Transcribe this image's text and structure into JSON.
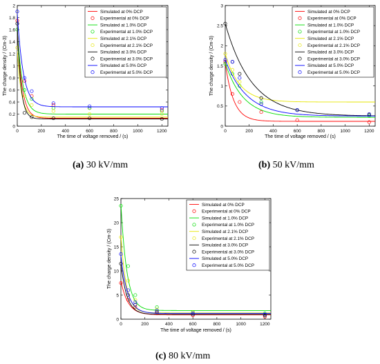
{
  "captions": [
    {
      "letter": "(a)",
      "text": "30 kV/mm"
    },
    {
      "letter": "(b)",
      "text": "50 kV/mm"
    },
    {
      "letter": "(c)",
      "text": "80 kV/mm"
    }
  ],
  "legend_entries": [
    "Simulated at 0% DCP",
    "Experimental at 0% DCP",
    "Simulated at 1.0% DCP",
    "Experimental at 1.0% DCP",
    "Simulated at 2.1% DCP",
    "Experimental at 2.1% DCP",
    "Simulated at 3.0% DCP",
    "Experimental at 3.0% DCP",
    "Simulated at 5.0% DCP",
    "Experimental at 5.0% DCP"
  ],
  "colors": {
    "0%": "#ff0000",
    "1.0%": "#00dd00",
    "2.1%": "#e6e600",
    "3.0%": "#000000",
    "5.0%": "#0000ff"
  },
  "chart_data": [
    {
      "type": "scatter",
      "xlabel": "The time of voltage removed / (s)",
      "ylabel": "The charge density / (Cm-3)",
      "xlim": [
        0,
        1250
      ],
      "ylim": [
        0,
        2
      ],
      "xticks": [
        0,
        200,
        400,
        600,
        800,
        1000,
        1200
      ],
      "yticks": [
        0,
        0.2,
        0.4,
        0.6,
        0.8,
        1,
        1.2,
        1.4,
        1.6,
        1.8,
        2
      ],
      "ytick_labels": [
        "0",
        "0.2",
        "0.4",
        "0.6",
        "0.8",
        "1",
        "1.2",
        "1.4",
        "1.6",
        "1.8",
        "2"
      ],
      "legend": "top-right",
      "series": [
        {
          "name": "0%",
          "sim": {
            "A": 1.45,
            "tau": 40,
            "c": 0.13
          },
          "exp": [
            [
              0,
              1.75
            ],
            [
              60,
              0.75
            ],
            [
              120,
              0.5
            ],
            [
              300,
              0.35
            ],
            [
              600,
              0.3
            ],
            [
              1200,
              0.27
            ]
          ]
        },
        {
          "name": "1.0%",
          "sim": {
            "A": 1.4,
            "tau": 45,
            "c": 0.2
          },
          "exp": [
            [
              0,
              1.6
            ],
            [
              60,
              0.6
            ],
            [
              120,
              0.45
            ],
            [
              300,
              0.3
            ],
            [
              600,
              0.3
            ],
            [
              1200,
              0.25
            ]
          ]
        },
        {
          "name": "2.1%",
          "sim": {
            "A": 1.1,
            "tau": 35,
            "c": 0.15
          },
          "exp": [
            [
              0,
              1.3
            ],
            [
              60,
              0.5
            ],
            [
              120,
              0.35
            ],
            [
              300,
              0.25
            ],
            [
              600,
              0.2
            ],
            [
              1200,
              0.2
            ]
          ]
        },
        {
          "name": "3.0%",
          "sim": {
            "A": 1.55,
            "tau": 30,
            "c": 0.12
          },
          "exp": [
            [
              0,
              1.7
            ],
            [
              60,
              0.22
            ],
            [
              120,
              0.15
            ],
            [
              300,
              0.13
            ],
            [
              600,
              0.13
            ],
            [
              1200,
              0.12
            ]
          ]
        },
        {
          "name": "5.0%",
          "sim": {
            "A": 1.55,
            "tau": 50,
            "c": 0.32
          },
          "exp": [
            [
              0,
              1.9
            ],
            [
              60,
              0.8
            ],
            [
              120,
              0.58
            ],
            [
              300,
              0.38
            ],
            [
              600,
              0.33
            ],
            [
              1200,
              0.3
            ]
          ]
        }
      ]
    },
    {
      "type": "scatter",
      "xlabel": "The time of voltage removed / (s)",
      "ylabel": "The charge density / (Cm-3)",
      "xlim": [
        0,
        1250
      ],
      "ylim": [
        0,
        3
      ],
      "xticks": [
        0,
        200,
        400,
        600,
        800,
        1000,
        1200
      ],
      "yticks": [
        0,
        0.5,
        1,
        1.5,
        2,
        2.5,
        3
      ],
      "ytick_labels": [
        "0",
        "0.5",
        "1",
        "1.5",
        "2",
        "2.5",
        "3"
      ],
      "legend": "top-right",
      "series": [
        {
          "name": "0%",
          "sim": {
            "A": 1.45,
            "tau": 70,
            "c": 0.12
          },
          "exp": [
            [
              0,
              1.6
            ],
            [
              60,
              0.8
            ],
            [
              120,
              0.6
            ],
            [
              300,
              0.35
            ],
            [
              600,
              0.15
            ],
            [
              1200,
              0.1
            ]
          ]
        },
        {
          "name": "1.0%",
          "sim": {
            "A": 1.35,
            "tau": 150,
            "c": 0.22
          },
          "exp": [
            [
              0,
              1.55
            ],
            [
              60,
              1.3
            ],
            [
              120,
              1.0
            ],
            [
              300,
              0.6
            ],
            [
              600,
              0.4
            ],
            [
              1200,
              0.25
            ]
          ]
        },
        {
          "name": "2.1%",
          "sim": {
            "A": 1.2,
            "tau": 120,
            "c": 0.6
          },
          "exp": [
            [
              0,
              1.8
            ],
            [
              60,
              1.4
            ],
            [
              120,
              1.1
            ],
            [
              300,
              0.55
            ],
            [
              600,
              0.4
            ],
            [
              1200,
              0.3
            ]
          ]
        },
        {
          "name": "3.0%",
          "sim": {
            "A": 2.3,
            "tau": 220,
            "c": 0.25
          },
          "exp": [
            [
              0,
              2.55
            ],
            [
              60,
              1.6
            ],
            [
              120,
              1.3
            ],
            [
              300,
              0.7
            ],
            [
              600,
              0.4
            ],
            [
              1200,
              0.28
            ]
          ]
        },
        {
          "name": "5.0%",
          "sim": {
            "A": 1.4,
            "tau": 180,
            "c": 0.25
          },
          "exp": [
            [
              0,
              1.65
            ],
            [
              60,
              1.6
            ],
            [
              120,
              1.2
            ],
            [
              300,
              0.55
            ],
            [
              600,
              0.4
            ],
            [
              1200,
              0.3
            ]
          ]
        }
      ]
    },
    {
      "type": "scatter",
      "xlabel": "The time of voltage removed / (s)",
      "ylabel": "The charge density / (Cm-3)",
      "xlim": [
        0,
        1250
      ],
      "ylim": [
        0,
        25
      ],
      "xticks": [
        0,
        200,
        400,
        600,
        800,
        1000,
        1200
      ],
      "yticks": [
        0,
        5,
        10,
        15,
        20,
        25
      ],
      "ytick_labels": [
        "0",
        "5",
        "10",
        "15",
        "20",
        "25"
      ],
      "legend": "top-right",
      "series": [
        {
          "name": "0%",
          "sim": {
            "A": 7.0,
            "tau": 60,
            "c": 0.9
          },
          "exp": [
            [
              0,
              7.5
            ],
            [
              60,
              4.0
            ],
            [
              120,
              2.5
            ],
            [
              300,
              1.2
            ],
            [
              600,
              0.8
            ],
            [
              1200,
              0.5
            ]
          ]
        },
        {
          "name": "1.0%",
          "sim": {
            "A": 22.0,
            "tau": 50,
            "c": 1.8
          },
          "exp": [
            [
              0,
              23.5
            ],
            [
              60,
              11.0
            ],
            [
              120,
              5.0
            ],
            [
              300,
              2.5
            ],
            [
              600,
              1.5
            ],
            [
              1200,
              1.2
            ]
          ]
        },
        {
          "name": "2.1%",
          "sim": {
            "A": 16.0,
            "tau": 45,
            "c": 1.3
          },
          "exp": [
            [
              0,
              17.0
            ],
            [
              60,
              8.0
            ],
            [
              120,
              4.0
            ],
            [
              300,
              2.0
            ],
            [
              600,
              1.4
            ],
            [
              1200,
              1.0
            ]
          ]
        },
        {
          "name": "3.0%",
          "sim": {
            "A": 10.5,
            "tau": 50,
            "c": 1.0
          },
          "exp": [
            [
              0,
              11.5
            ],
            [
              60,
              5.0
            ],
            [
              120,
              3.0
            ],
            [
              300,
              1.5
            ],
            [
              600,
              1.0
            ],
            [
              1200,
              0.8
            ]
          ]
        },
        {
          "name": "5.0%",
          "sim": {
            "A": 12.0,
            "tau": 55,
            "c": 1.2
          },
          "exp": [
            [
              0,
              13.5
            ],
            [
              60,
              6.0
            ],
            [
              120,
              3.5
            ],
            [
              300,
              1.8
            ],
            [
              600,
              1.2
            ],
            [
              1200,
              1.0
            ]
          ]
        }
      ]
    }
  ]
}
